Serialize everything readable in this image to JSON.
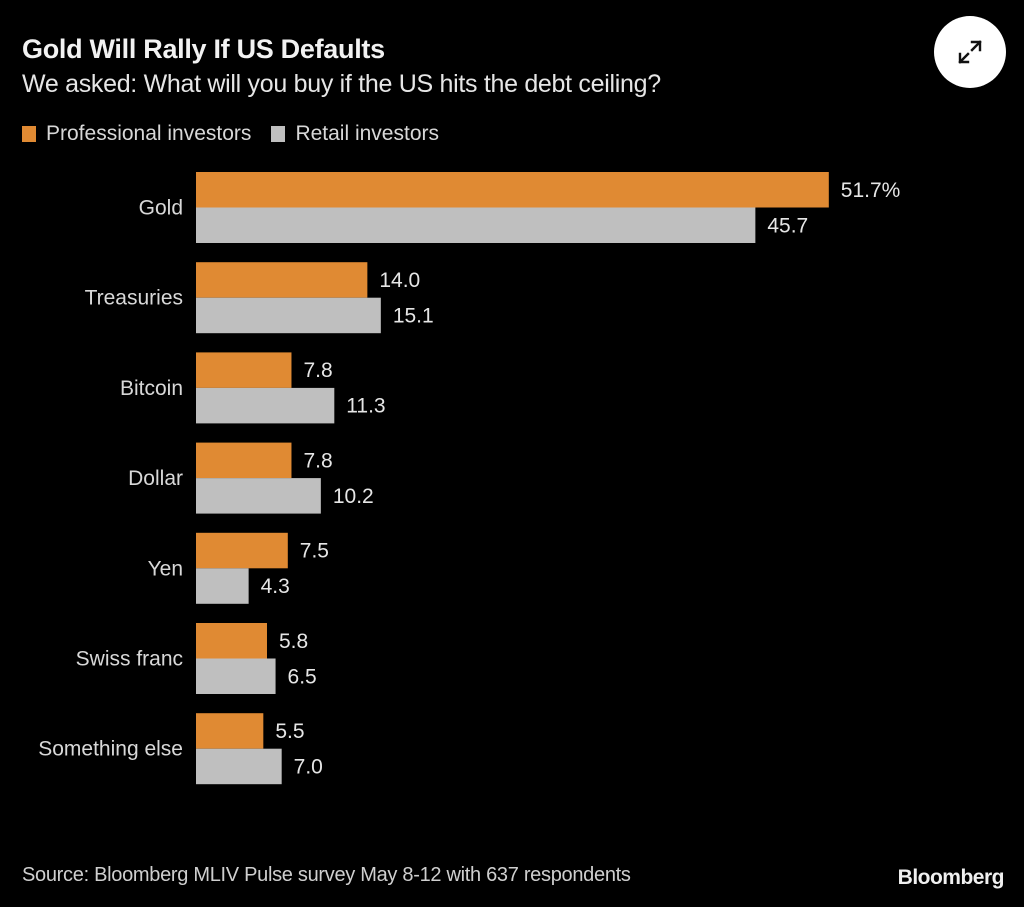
{
  "header": {
    "title": "Gold Will Rally If US Defaults",
    "subtitle": "We asked: What will you buy if the US hits the debt ceiling?",
    "expand_icon": "expand-arrows-icon"
  },
  "footer": {
    "source": "Source: Bloomberg MLIV Pulse survey May 8-12 with 637 respondents",
    "brand": "Bloomberg"
  },
  "colors": {
    "background": "#000000",
    "professional": "#e08a33",
    "retail": "#bfbfbf"
  },
  "chart_data": {
    "type": "bar",
    "orientation": "horizontal",
    "title": "Gold Will Rally If US Defaults",
    "subtitle": "We asked: What will you buy if the US hits the debt ceiling?",
    "xlabel": "",
    "ylabel": "",
    "unit": "%",
    "xlim": [
      0,
      52
    ],
    "grid": false,
    "legend_position": "top-left",
    "categories": [
      "Gold",
      "Treasuries",
      "Bitcoin",
      "Dollar",
      "Yen",
      "Swiss franc",
      "Something else"
    ],
    "series": [
      {
        "name": "Professional investors",
        "color": "#e08a33",
        "values": [
          51.7,
          14.0,
          7.8,
          7.8,
          7.5,
          5.8,
          5.5
        ],
        "labels": [
          "51.7%",
          "14.0",
          "7.8",
          "7.8",
          "7.5",
          "5.8",
          "5.5"
        ]
      },
      {
        "name": "Retail investors",
        "color": "#bfbfbf",
        "values": [
          45.7,
          15.1,
          11.3,
          10.2,
          4.3,
          6.5,
          7.0
        ],
        "labels": [
          "45.7",
          "15.1",
          "11.3",
          "10.2",
          "4.3",
          "6.5",
          "7.0"
        ]
      }
    ],
    "source": "Source: Bloomberg MLIV Pulse survey May 8-12 with 637 respondents"
  }
}
